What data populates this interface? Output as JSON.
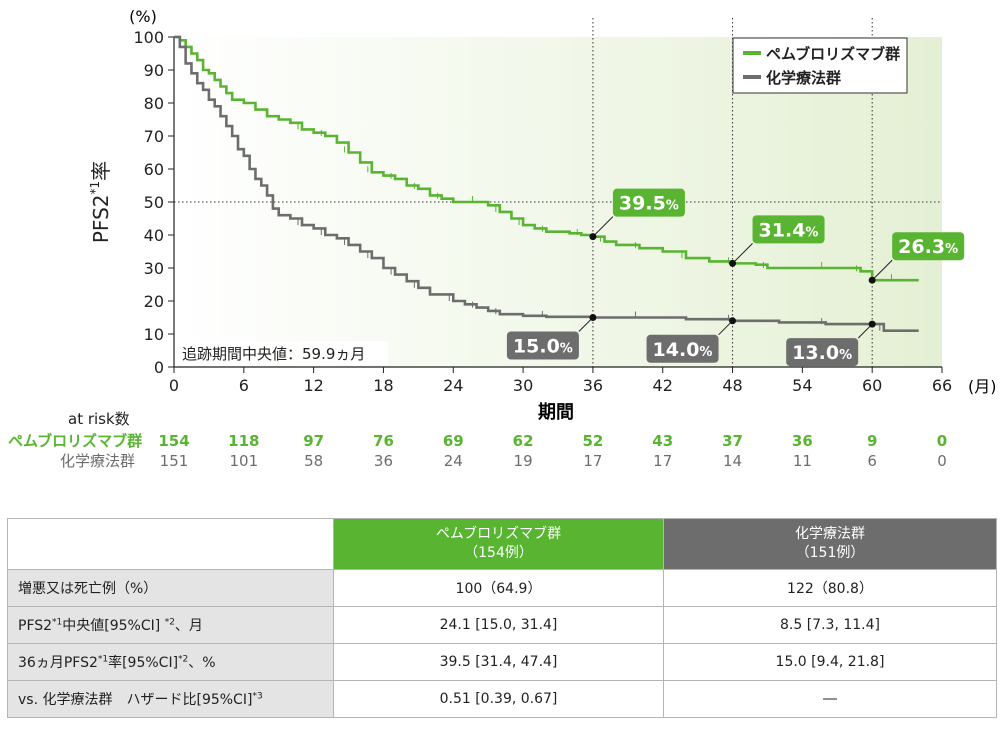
{
  "chart_data": {
    "type": "line",
    "ylabel_unit": "(%)",
    "ylabel_main": "PFS2",
    "ylabel_sup": "*1",
    "ylabel_suffix": "率",
    "xlabel": "期間",
    "x_unit": "(月)",
    "x_ticks": [
      0,
      6,
      12,
      18,
      24,
      30,
      36,
      42,
      48,
      54,
      60,
      66
    ],
    "y_ticks": [
      0,
      10,
      20,
      30,
      40,
      50,
      60,
      70,
      80,
      90,
      100
    ],
    "xlim": [
      0,
      66
    ],
    "ylim": [
      0,
      100
    ],
    "grid": false,
    "reference_line_y": 50,
    "legend_position": "top-right",
    "annotation": "追跡期間中央値：59.9ヵ月",
    "series": [
      {
        "name": "ペムブロリズマブ群",
        "color": "#58b431",
        "points": [
          [
            0,
            100
          ],
          [
            0.5,
            99
          ],
          [
            1,
            97
          ],
          [
            1.5,
            95
          ],
          [
            2,
            93
          ],
          [
            2.5,
            90
          ],
          [
            3,
            89
          ],
          [
            3.5,
            87
          ],
          [
            4,
            85
          ],
          [
            4.5,
            83
          ],
          [
            5,
            81
          ],
          [
            6,
            80
          ],
          [
            7,
            78
          ],
          [
            8,
            76
          ],
          [
            9,
            75
          ],
          [
            10,
            74
          ],
          [
            11,
            72
          ],
          [
            12,
            71
          ],
          [
            13,
            70
          ],
          [
            14,
            68
          ],
          [
            15,
            65
          ],
          [
            16,
            62
          ],
          [
            17,
            59
          ],
          [
            18,
            58
          ],
          [
            19,
            57
          ],
          [
            20,
            55
          ],
          [
            21,
            54
          ],
          [
            22,
            52
          ],
          [
            23,
            51
          ],
          [
            24,
            50
          ],
          [
            26,
            50
          ],
          [
            27,
            49
          ],
          [
            28,
            47
          ],
          [
            29,
            45
          ],
          [
            30,
            43
          ],
          [
            31,
            42
          ],
          [
            32,
            41
          ],
          [
            34,
            40.5
          ],
          [
            35,
            40
          ],
          [
            36,
            39.5
          ],
          [
            37,
            38
          ],
          [
            38,
            37
          ],
          [
            40,
            36
          ],
          [
            42,
            35
          ],
          [
            44,
            33
          ],
          [
            46,
            32
          ],
          [
            48,
            31.4
          ],
          [
            50,
            31
          ],
          [
            51,
            30
          ],
          [
            54,
            30
          ],
          [
            56,
            30
          ],
          [
            58,
            30
          ],
          [
            59,
            29
          ],
          [
            60,
            26.3
          ],
          [
            62,
            26.3
          ],
          [
            64,
            26.3
          ]
        ],
        "at_risk": [
          154,
          118,
          97,
          76,
          69,
          62,
          52,
          43,
          37,
          36,
          9,
          0
        ]
      },
      {
        "name": "化学療法群",
        "color": "#6d6d6d",
        "points": [
          [
            0,
            100
          ],
          [
            0.5,
            97
          ],
          [
            1,
            92
          ],
          [
            1.5,
            89
          ],
          [
            2,
            86
          ],
          [
            2.5,
            84
          ],
          [
            3,
            81
          ],
          [
            3.5,
            79
          ],
          [
            4,
            76
          ],
          [
            4.5,
            73
          ],
          [
            5,
            70
          ],
          [
            5.5,
            66
          ],
          [
            6,
            64
          ],
          [
            6.5,
            60
          ],
          [
            7,
            57
          ],
          [
            7.5,
            55
          ],
          [
            8,
            52
          ],
          [
            8.5,
            48
          ],
          [
            9,
            46
          ],
          [
            10,
            45
          ],
          [
            11,
            43
          ],
          [
            12,
            42
          ],
          [
            13,
            40
          ],
          [
            14,
            39
          ],
          [
            15,
            37
          ],
          [
            16,
            35
          ],
          [
            17,
            33
          ],
          [
            18,
            30
          ],
          [
            19,
            28
          ],
          [
            20,
            26
          ],
          [
            21,
            24
          ],
          [
            22,
            22
          ],
          [
            24,
            20
          ],
          [
            25,
            19
          ],
          [
            26,
            18
          ],
          [
            27,
            17
          ],
          [
            28,
            16
          ],
          [
            30,
            15.5
          ],
          [
            32,
            15.2
          ],
          [
            36,
            15
          ],
          [
            40,
            15
          ],
          [
            44,
            14.5
          ],
          [
            48,
            14
          ],
          [
            52,
            13.5
          ],
          [
            56,
            13
          ],
          [
            60,
            13
          ],
          [
            61,
            11
          ],
          [
            64,
            11
          ]
        ],
        "at_risk": [
          151,
          101,
          58,
          36,
          24,
          19,
          17,
          17,
          14,
          11,
          6,
          0
        ]
      }
    ],
    "callouts": [
      {
        "series": 0,
        "x": 36,
        "y": 39.5,
        "label": "39.5",
        "pct": "%"
      },
      {
        "series": 0,
        "x": 48,
        "y": 31.4,
        "label": "31.4",
        "pct": "%"
      },
      {
        "series": 0,
        "x": 60,
        "y": 26.3,
        "label": "26.3",
        "pct": "%"
      },
      {
        "series": 1,
        "x": 36,
        "y": 15.0,
        "label": "15.0",
        "pct": "%"
      },
      {
        "series": 1,
        "x": 48,
        "y": 14.0,
        "label": "14.0",
        "pct": "%"
      },
      {
        "series": 1,
        "x": 60,
        "y": 13.0,
        "label": "13.0",
        "pct": "%"
      }
    ],
    "at_risk_title": "at risk数"
  },
  "table": {
    "header": {
      "pem_name": "ペムブロリズマブ群",
      "pem_n": "（154例）",
      "chemo_name": "化学療法群",
      "chemo_n": "（151例）"
    },
    "rows": [
      {
        "label": "増悪又は死亡例（%）",
        "pem": "100（64.9）",
        "chemo": "122（80.8）"
      },
      {
        "label_pre": "PFS2",
        "label_sup1": "*1",
        "label_mid": "中央値[95%CI]",
        "label_sup2": "*2",
        "label_post": "、月",
        "pem": "24.1 [15.0, 31.4]",
        "chemo": "8.5 [7.3, 11.4]"
      },
      {
        "label_pre": "36ヵ月PFS2",
        "label_sup1": "*1",
        "label_mid": "率[95%CI]",
        "label_sup2": "*2",
        "label_post": "、%",
        "pem": "39.5 [31.4, 47.4]",
        "chemo": "15.0 [9.4, 21.8]"
      },
      {
        "label_pre": "vs. 化学療法群　ハザード比[95%CI]",
        "label_sup1": "*3",
        "pem": "0.51 [0.39, 0.67]",
        "chemo": "―"
      }
    ]
  }
}
